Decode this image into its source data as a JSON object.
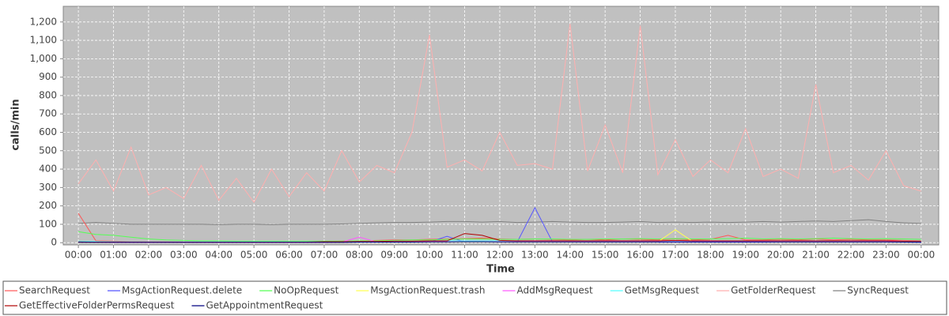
{
  "chart_data": {
    "type": "line",
    "x_label": "Time",
    "y_label": "calls/min",
    "xlim": [
      -0.43,
      24.5
    ],
    "ylim": [
      -12,
      1285
    ],
    "xticks": [
      {
        "value": 0,
        "label": "00:00"
      },
      {
        "value": 1,
        "label": "01:00"
      },
      {
        "value": 2,
        "label": "02:00"
      },
      {
        "value": 3,
        "label": "03:00"
      },
      {
        "value": 4,
        "label": "04:00"
      },
      {
        "value": 5,
        "label": "05:00"
      },
      {
        "value": 6,
        "label": "06:00"
      },
      {
        "value": 7,
        "label": "07:00"
      },
      {
        "value": 8,
        "label": "08:00"
      },
      {
        "value": 9,
        "label": "09:00"
      },
      {
        "value": 10,
        "label": "10:00"
      },
      {
        "value": 11,
        "label": "11:00"
      },
      {
        "value": 12,
        "label": "12:00"
      },
      {
        "value": 13,
        "label": "13:00"
      },
      {
        "value": 14,
        "label": "14:00"
      },
      {
        "value": 15,
        "label": "15:00"
      },
      {
        "value": 16,
        "label": "16:00"
      },
      {
        "value": 17,
        "label": "17:00"
      },
      {
        "value": 18,
        "label": "18:00"
      },
      {
        "value": 19,
        "label": "19:00"
      },
      {
        "value": 20,
        "label": "20:00"
      },
      {
        "value": 21,
        "label": "21:00"
      },
      {
        "value": 22,
        "label": "22:00"
      },
      {
        "value": 23,
        "label": "23:00"
      },
      {
        "value": 24,
        "label": "00:00"
      }
    ],
    "yticks": [
      0,
      100,
      200,
      300,
      400,
      500,
      600,
      700,
      800,
      900,
      {
        "value": 1000,
        "label": "1,000"
      },
      {
        "value": 1100,
        "label": "1,100"
      },
      {
        "value": 1200,
        "label": "1,200"
      }
    ],
    "grid": true,
    "legend": "bottom",
    "x": [
      0,
      0.5,
      1,
      1.5,
      2,
      2.5,
      3,
      3.5,
      4,
      4.5,
      5,
      5.5,
      6,
      6.5,
      7,
      7.5,
      8,
      8.5,
      9,
      9.5,
      10,
      10.5,
      11,
      11.5,
      12,
      12.5,
      13,
      13.5,
      14,
      14.5,
      15,
      15.5,
      16,
      16.5,
      17,
      17.5,
      18,
      18.5,
      19,
      19.5,
      20,
      20.5,
      21,
      21.5,
      22,
      22.5,
      23,
      23.5,
      24
    ],
    "series": [
      {
        "name": "SearchRequest",
        "color": "#ff5555",
        "values": [
          160,
          10,
          8,
          5,
          5,
          5,
          4,
          3,
          3,
          3,
          3,
          3,
          4,
          5,
          6,
          8,
          10,
          12,
          15,
          15,
          18,
          20,
          22,
          25,
          20,
          18,
          20,
          18,
          15,
          18,
          15,
          20,
          18,
          15,
          20,
          15,
          18,
          40,
          15,
          15,
          18,
          15,
          20,
          15,
          18,
          15,
          15,
          12,
          10
        ]
      },
      {
        "name": "MsgActionRequest.delete",
        "color": "#5555ff",
        "values": [
          3,
          2,
          2,
          2,
          2,
          2,
          2,
          2,
          2,
          2,
          2,
          2,
          2,
          2,
          2,
          2,
          3,
          3,
          3,
          3,
          4,
          35,
          4,
          4,
          4,
          4,
          190,
          4,
          4,
          3,
          3,
          3,
          3,
          3,
          3,
          3,
          3,
          3,
          3,
          3,
          3,
          3,
          3,
          3,
          3,
          3,
          3,
          3,
          2
        ]
      },
      {
        "name": "NoOpRequest",
        "color": "#55ff55",
        "values": [
          60,
          45,
          40,
          30,
          20,
          15,
          12,
          10,
          10,
          8,
          8,
          8,
          8,
          8,
          8,
          8,
          10,
          10,
          12,
          15,
          15,
          18,
          20,
          20,
          18,
          18,
          20,
          20,
          18,
          18,
          20,
          20,
          22,
          20,
          22,
          20,
          20,
          22,
          25,
          20,
          22,
          20,
          22,
          25,
          22,
          20,
          22,
          20,
          18
        ]
      },
      {
        "name": "MsgActionRequest.trash",
        "color": "#ffff55",
        "values": [
          2,
          2,
          2,
          2,
          2,
          2,
          2,
          2,
          2,
          2,
          2,
          2,
          2,
          2,
          2,
          2,
          3,
          3,
          3,
          3,
          4,
          4,
          4,
          4,
          4,
          4,
          4,
          4,
          4,
          4,
          4,
          4,
          4,
          4,
          70,
          5,
          5,
          5,
          5,
          5,
          4,
          4,
          4,
          4,
          4,
          4,
          4,
          4,
          3
        ]
      },
      {
        "name": "AddMsgRequest",
        "color": "#ff55ff",
        "values": [
          3,
          3,
          2,
          2,
          2,
          2,
          2,
          2,
          2,
          2,
          2,
          2,
          2,
          2,
          2,
          3,
          30,
          4,
          4,
          4,
          5,
          5,
          5,
          5,
          5,
          5,
          5,
          5,
          5,
          5,
          5,
          5,
          5,
          5,
          5,
          5,
          5,
          5,
          5,
          5,
          5,
          5,
          5,
          5,
          5,
          5,
          5,
          4,
          4
        ]
      },
      {
        "name": "GetMsgRequest",
        "color": "#55ffff",
        "values": [
          8,
          6,
          5,
          4,
          4,
          4,
          4,
          4,
          4,
          4,
          4,
          4,
          4,
          4,
          5,
          5,
          6,
          6,
          8,
          8,
          10,
          10,
          10,
          10,
          10,
          10,
          10,
          10,
          10,
          10,
          10,
          10,
          10,
          10,
          10,
          10,
          10,
          10,
          10,
          10,
          10,
          10,
          10,
          10,
          10,
          10,
          10,
          8,
          8
        ]
      },
      {
        "name": "GetFolderRequest",
        "color": "#ffafaf",
        "values": [
          320,
          450,
          280,
          520,
          260,
          300,
          240,
          420,
          230,
          350,
          220,
          400,
          250,
          380,
          280,
          500,
          330,
          420,
          380,
          600,
          1130,
          410,
          450,
          390,
          600,
          420,
          430,
          400,
          1190,
          390,
          640,
          380,
          1180,
          370,
          560,
          360,
          450,
          380,
          620,
          360,
          400,
          350,
          860,
          380,
          420,
          340,
          500,
          310,
          280
        ]
      },
      {
        "name": "SyncRequest",
        "color": "#808080",
        "values": [
          105,
          110,
          105,
          100,
          100,
          100,
          100,
          100,
          98,
          100,
          100,
          98,
          100,
          100,
          100,
          102,
          105,
          108,
          110,
          110,
          112,
          115,
          115,
          112,
          115,
          110,
          112,
          115,
          112,
          110,
          110,
          112,
          115,
          110,
          112,
          110,
          112,
          110,
          112,
          115,
          112,
          115,
          118,
          115,
          120,
          125,
          115,
          108,
          105
        ]
      },
      {
        "name": "GetEffectiveFolderPermsRequest",
        "color": "#b00000",
        "values": [
          4,
          3,
          3,
          3,
          3,
          3,
          3,
          3,
          3,
          3,
          3,
          3,
          3,
          3,
          5,
          5,
          6,
          6,
          8,
          8,
          10,
          10,
          50,
          40,
          12,
          10,
          10,
          10,
          10,
          10,
          10,
          10,
          10,
          10,
          12,
          10,
          10,
          10,
          10,
          10,
          10,
          10,
          10,
          10,
          10,
          10,
          10,
          8,
          8
        ]
      },
      {
        "name": "GetAppointmentRequest",
        "color": "#000080",
        "values": [
          2,
          2,
          2,
          2,
          2,
          2,
          2,
          2,
          2,
          2,
          2,
          2,
          2,
          2,
          2,
          2,
          3,
          3,
          3,
          3,
          4,
          4,
          5,
          5,
          4,
          4,
          4,
          4,
          4,
          4,
          4,
          4,
          4,
          4,
          4,
          4,
          4,
          4,
          4,
          4,
          4,
          4,
          4,
          4,
          4,
          4,
          4,
          3,
          3
        ]
      }
    ]
  }
}
